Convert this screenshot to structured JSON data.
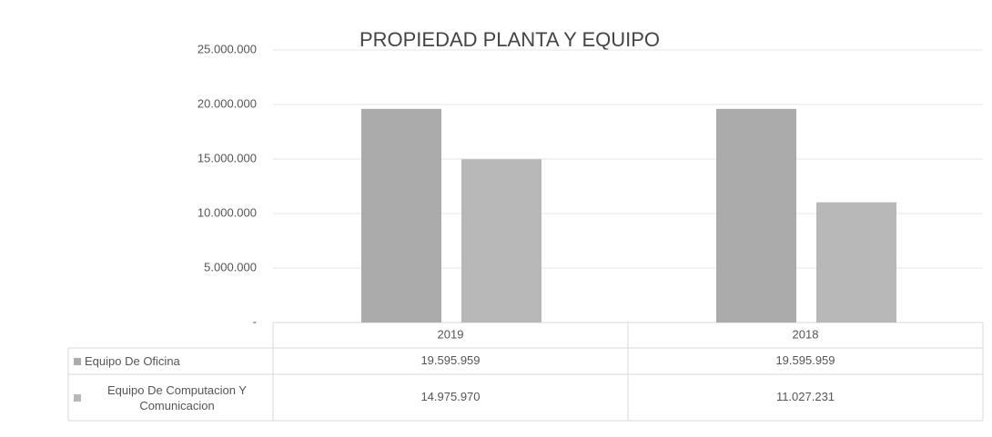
{
  "chart_data": {
    "type": "bar",
    "title": "PROPIEDAD PLANTA Y EQUIPO",
    "categories": [
      "2019",
      "2018"
    ],
    "series": [
      {
        "name": "Equipo De Oficina",
        "color": "#ababab",
        "values": [
          19595959,
          19595959
        ],
        "value_labels": [
          "19.595.959",
          "19.595.959"
        ]
      },
      {
        "name": "Equipo De Computacion Y Comunicacion",
        "color": "#b8b8b8",
        "values": [
          14975970,
          11027231
        ],
        "value_labels": [
          "14.975.970",
          "11.027.231"
        ]
      }
    ],
    "ylim": [
      0,
      25000000
    ],
    "yticks": [
      {
        "value": 0,
        "label": "-"
      },
      {
        "value": 5000000,
        "label": "5.000.000"
      },
      {
        "value": 10000000,
        "label": "10.000.000"
      },
      {
        "value": 15000000,
        "label": "15.000.000"
      },
      {
        "value": 20000000,
        "label": "20.000.000"
      },
      {
        "value": 25000000,
        "label": "25.000.000"
      }
    ],
    "grid": true
  }
}
